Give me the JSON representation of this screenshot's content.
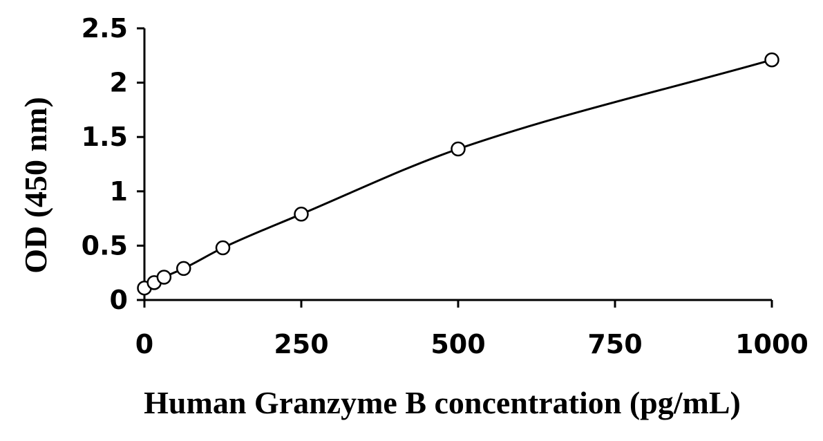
{
  "chart_data": {
    "type": "scatter",
    "title": "",
    "xlabel": "Human Granzyme B concentration (pg/mL)",
    "ylabel": "OD (450 nm)",
    "xlim": [
      0,
      1000
    ],
    "ylim": [
      0,
      2.5
    ],
    "x_ticks": [
      "0",
      "250",
      "500",
      "750",
      "1000"
    ],
    "y_ticks": [
      "0",
      "0.5",
      "1",
      "1.5",
      "2",
      "2.5"
    ],
    "x_tick_values": [
      0,
      250,
      500,
      750,
      1000
    ],
    "y_tick_values": [
      0,
      0.5,
      1,
      1.5,
      2,
      2.5
    ],
    "grid": false,
    "legend": "none",
    "fit": "smooth curve through points",
    "series": [
      {
        "marker": "open-circle",
        "x": [
          0,
          15.6,
          31.25,
          62.5,
          125,
          250,
          500,
          1000
        ],
        "y": [
          0.11,
          0.16,
          0.21,
          0.29,
          0.48,
          0.79,
          1.39,
          2.21
        ]
      }
    ]
  }
}
